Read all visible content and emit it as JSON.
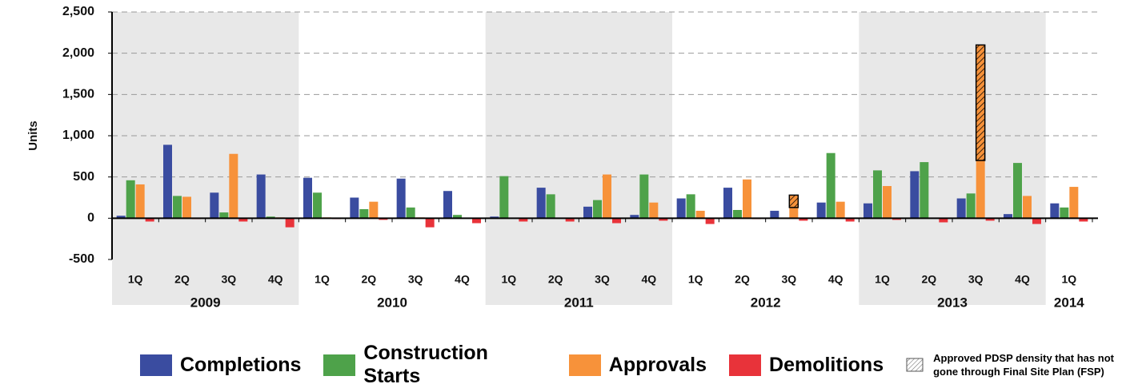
{
  "chart_data": {
    "type": "bar",
    "y_label": "Units",
    "ylim": [
      -500,
      2500
    ],
    "yticks": [
      -500,
      0,
      500,
      {
        "value": 1000,
        "label": "1,000"
      },
      {
        "value": 1500,
        "label": "1,500"
      },
      {
        "value": 2000,
        "label": "2,000"
      },
      {
        "value": 2500,
        "label": "2,500"
      }
    ],
    "grid": true,
    "groups": [
      {
        "label": "2009",
        "categories": [
          "1Q",
          "2Q",
          "3Q",
          "4Q"
        ]
      },
      {
        "label": "2010",
        "categories": [
          "1Q",
          "2Q",
          "3Q",
          "4Q"
        ]
      },
      {
        "label": "2011",
        "categories": [
          "1Q",
          "2Q",
          "3Q",
          "4Q"
        ]
      },
      {
        "label": "2012",
        "categories": [
          "1Q",
          "2Q",
          "3Q",
          "4Q"
        ]
      },
      {
        "label": "2013",
        "categories": [
          "1Q",
          "2Q",
          "3Q",
          "4Q"
        ]
      },
      {
        "label": "2014",
        "categories": [
          "1Q"
        ]
      }
    ],
    "series": [
      {
        "name": "Completions",
        "color": "#3a4ca0",
        "values": [
          30,
          890,
          310,
          530,
          490,
          250,
          480,
          330,
          20,
          370,
          140,
          40,
          240,
          370,
          90,
          190,
          180,
          570,
          240,
          50,
          180
        ]
      },
      {
        "name": "Construction Starts",
        "color": "#4ea24a",
        "values": [
          460,
          270,
          70,
          20,
          310,
          110,
          130,
          40,
          510,
          290,
          220,
          530,
          290,
          100,
          0,
          790,
          580,
          680,
          300,
          670,
          130
        ]
      },
      {
        "name": "Approvals",
        "color": "#f7923a",
        "values": [
          410,
          260,
          780,
          10,
          10,
          200,
          10,
          0,
          0,
          0,
          530,
          190,
          90,
          470,
          130,
          200,
          390,
          0,
          700,
          270,
          380
        ]
      },
      {
        "name": "Demolitions",
        "color": "#e8333a",
        "values": [
          -40,
          -10,
          -40,
          -110,
          -10,
          -20,
          -110,
          -60,
          -40,
          -40,
          -60,
          -30,
          -70,
          -10,
          -30,
          -40,
          -20,
          -50,
          -30,
          -70,
          -40
        ]
      },
      {
        "name": "Approved PDSP density that has not gone through Final Site Plan (FSP)",
        "color": "#f7923a",
        "pattern": "hatch",
        "stack": "Approvals",
        "values": [
          null,
          null,
          null,
          null,
          null,
          null,
          null,
          null,
          null,
          null,
          null,
          null,
          null,
          null,
          150,
          null,
          null,
          null,
          1400,
          null,
          null
        ]
      }
    ]
  }
}
